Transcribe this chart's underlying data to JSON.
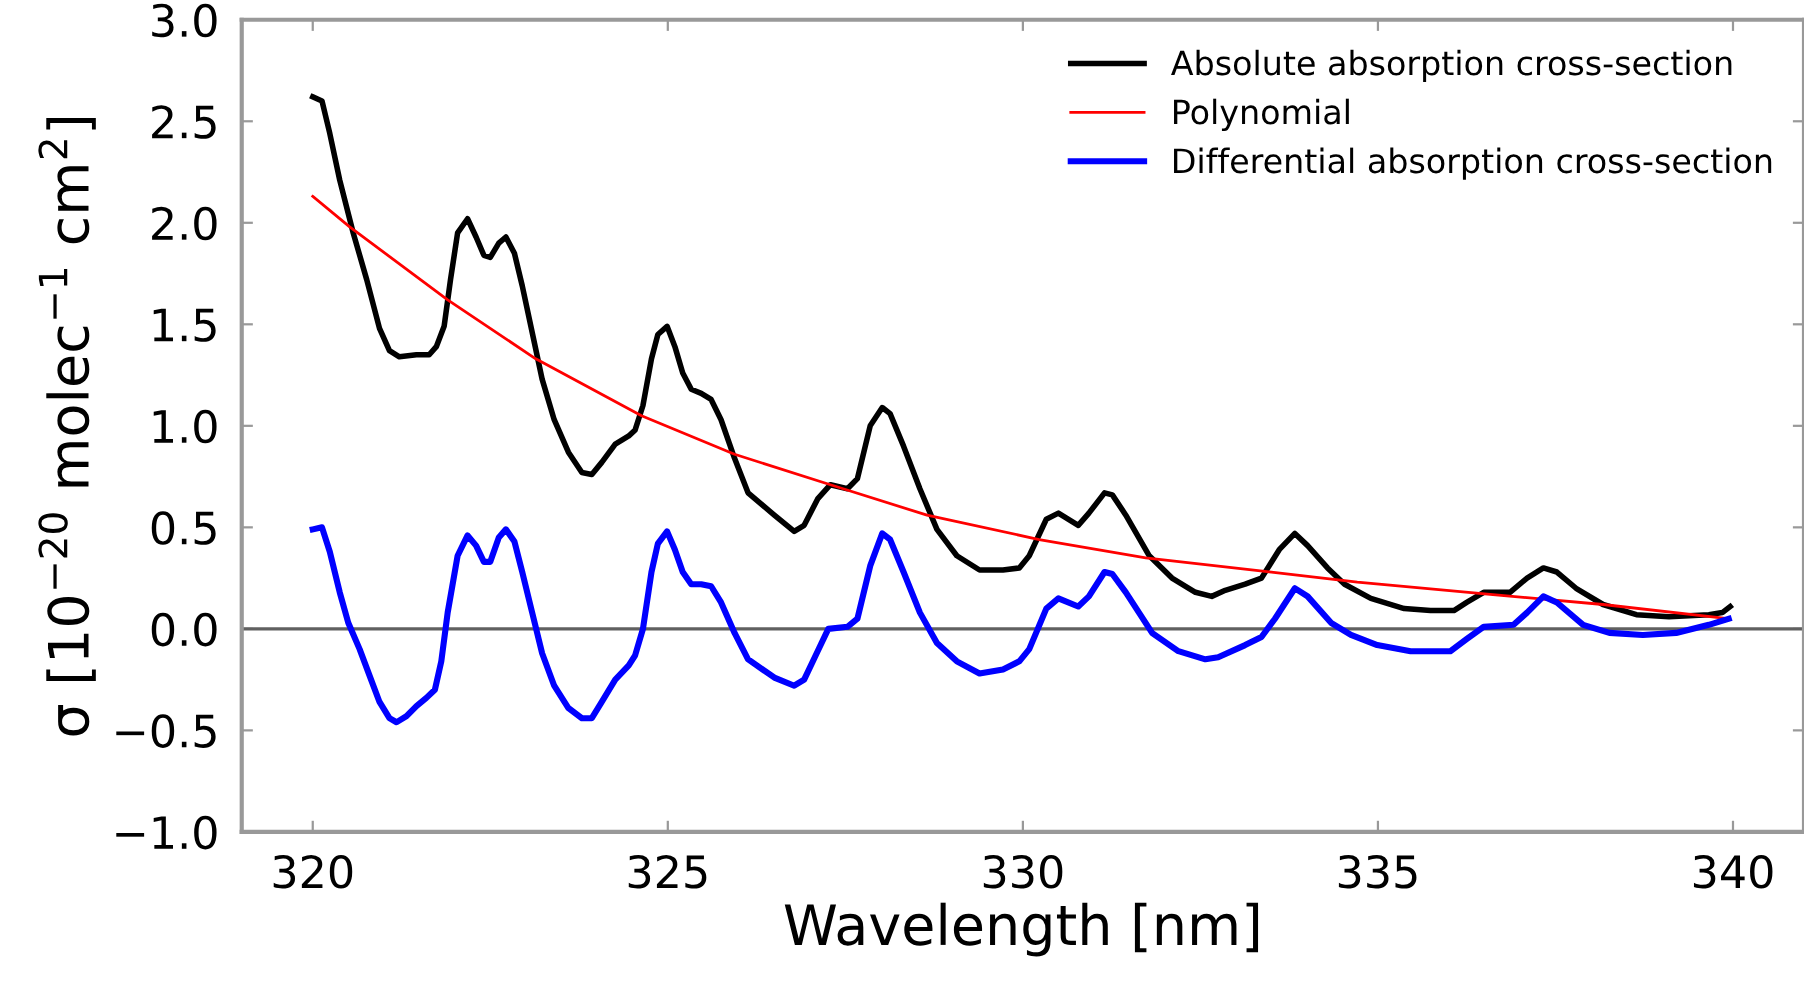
{
  "chart_data": {
    "type": "line",
    "xlabel": "Wavelength [nm]",
    "ylabel": "σ [10$^{−20}$ molec$^{−1}$ cm$^{2}$]",
    "xlim": [
      319,
      341
    ],
    "ylim": [
      -1.0,
      3.0
    ],
    "xticks": [
      320,
      325,
      330,
      335,
      340
    ],
    "yticks": [
      {
        "value": -1.0,
        "label": "−1.0"
      },
      {
        "value": -0.5,
        "label": "−0.5"
      },
      {
        "value": 0.0,
        "label": "0.0"
      },
      {
        "value": 0.5,
        "label": "0.5"
      },
      {
        "value": 1.0,
        "label": "1.0"
      },
      {
        "value": 1.5,
        "label": "1.5"
      },
      {
        "value": 2.0,
        "label": "2.0"
      },
      {
        "value": 2.5,
        "label": "2.5"
      },
      {
        "value": 3.0,
        "label": "3.0"
      }
    ],
    "grid": false,
    "legend": "top right",
    "line_style": "solid",
    "marker": "none",
    "ref_lines": [
      {
        "axis": "y",
        "value": 0,
        "color": "#606060"
      }
    ],
    "series": [
      {
        "name": "Absolute absorption cross-section",
        "color": "#000000",
        "x": [
          320.0,
          320.13,
          320.24,
          320.38,
          320.57,
          320.76,
          320.94,
          321.08,
          321.22,
          321.46,
          321.64,
          321.74,
          321.85,
          321.94,
          322.04,
          322.18,
          322.3,
          322.41,
          322.5,
          322.62,
          322.72,
          322.84,
          322.95,
          323.09,
          323.23,
          323.4,
          323.6,
          323.79,
          323.93,
          324.07,
          324.26,
          324.45,
          324.54,
          324.65,
          324.77,
          324.86,
          324.99,
          325.1,
          325.21,
          325.33,
          325.47,
          325.61,
          325.75,
          325.94,
          326.13,
          326.5,
          326.78,
          326.92,
          327.11,
          327.29,
          327.53,
          327.67,
          327.85,
          328.02,
          328.13,
          328.32,
          328.55,
          328.79,
          329.07,
          329.39,
          329.72,
          329.95,
          330.09,
          330.33,
          330.5,
          330.78,
          330.93,
          331.15,
          331.26,
          331.45,
          331.78,
          332.1,
          332.43,
          332.66,
          332.85,
          333.13,
          333.36,
          333.61,
          333.83,
          334.01,
          334.29,
          334.53,
          334.9,
          335.37,
          335.74,
          336.07,
          336.25,
          336.49,
          336.86,
          337.1,
          337.33,
          337.52,
          337.79,
          338.17,
          338.64,
          339.1,
          339.66,
          339.85,
          339.96
        ],
        "values": [
          2.62,
          2.6,
          2.44,
          2.21,
          1.95,
          1.72,
          1.48,
          1.37,
          1.34,
          1.35,
          1.35,
          1.39,
          1.49,
          1.72,
          1.95,
          2.02,
          1.93,
          1.84,
          1.83,
          1.9,
          1.93,
          1.85,
          1.69,
          1.46,
          1.23,
          1.03,
          0.87,
          0.77,
          0.76,
          0.82,
          0.91,
          0.95,
          0.98,
          1.1,
          1.33,
          1.45,
          1.49,
          1.39,
          1.26,
          1.18,
          1.16,
          1.13,
          1.03,
          0.84,
          0.67,
          0.56,
          0.48,
          0.51,
          0.64,
          0.71,
          0.69,
          0.74,
          1.0,
          1.09,
          1.06,
          0.9,
          0.69,
          0.49,
          0.36,
          0.29,
          0.29,
          0.3,
          0.36,
          0.54,
          0.57,
          0.51,
          0.57,
          0.67,
          0.66,
          0.56,
          0.36,
          0.25,
          0.18,
          0.16,
          0.19,
          0.22,
          0.25,
          0.39,
          0.47,
          0.41,
          0.3,
          0.22,
          0.15,
          0.1,
          0.09,
          0.09,
          0.13,
          0.18,
          0.18,
          0.25,
          0.3,
          0.28,
          0.2,
          0.12,
          0.07,
          0.06,
          0.07,
          0.08,
          0.11
        ]
      },
      {
        "name": "Polynomial",
        "color": "#ff0000",
        "x": [
          320.0,
          320.52,
          321.9,
          323.14,
          324.63,
          325.94,
          327.29,
          328.65,
          330.23,
          331.73,
          333.5,
          334.71,
          336.58,
          338.17,
          339.94
        ],
        "values": [
          2.13,
          1.98,
          1.62,
          1.33,
          1.05,
          0.86,
          0.71,
          0.56,
          0.44,
          0.35,
          0.28,
          0.23,
          0.17,
          0.12,
          0.05
        ]
      },
      {
        "name": "Differential absorption cross-section",
        "color": "#0000ff",
        "x": [
          320.0,
          320.13,
          320.24,
          320.38,
          320.5,
          320.66,
          320.8,
          320.94,
          321.08,
          321.18,
          321.32,
          321.46,
          321.6,
          321.72,
          321.81,
          321.9,
          322.04,
          322.18,
          322.3,
          322.41,
          322.5,
          322.62,
          322.72,
          322.84,
          322.95,
          323.09,
          323.23,
          323.4,
          323.6,
          323.79,
          323.93,
          324.07,
          324.26,
          324.45,
          324.54,
          324.65,
          324.77,
          324.86,
          324.99,
          325.1,
          325.21,
          325.33,
          325.47,
          325.61,
          325.75,
          325.94,
          326.13,
          326.5,
          326.78,
          326.92,
          327.11,
          327.26,
          327.53,
          327.67,
          327.85,
          328.02,
          328.13,
          328.32,
          328.55,
          328.79,
          329.07,
          329.39,
          329.72,
          329.95,
          330.09,
          330.33,
          330.5,
          330.78,
          330.93,
          331.15,
          331.26,
          331.45,
          331.82,
          332.19,
          332.57,
          332.75,
          333.13,
          333.36,
          333.55,
          333.83,
          334.01,
          334.34,
          334.62,
          334.99,
          335.46,
          336.02,
          336.25,
          336.49,
          336.91,
          337.1,
          337.33,
          337.52,
          337.89,
          338.26,
          338.73,
          339.2,
          339.66,
          339.94
        ],
        "values": [
          0.49,
          0.5,
          0.38,
          0.18,
          0.03,
          -0.1,
          -0.23,
          -0.36,
          -0.44,
          -0.46,
          -0.43,
          -0.38,
          -0.34,
          -0.3,
          -0.16,
          0.08,
          0.36,
          0.46,
          0.41,
          0.33,
          0.33,
          0.45,
          0.49,
          0.43,
          0.28,
          0.08,
          -0.12,
          -0.28,
          -0.39,
          -0.44,
          -0.44,
          -0.36,
          -0.25,
          -0.18,
          -0.13,
          0.0,
          0.28,
          0.42,
          0.48,
          0.39,
          0.28,
          0.22,
          0.22,
          0.21,
          0.13,
          -0.02,
          -0.15,
          -0.24,
          -0.28,
          -0.25,
          -0.11,
          0.0,
          0.01,
          0.05,
          0.31,
          0.47,
          0.44,
          0.28,
          0.08,
          -0.07,
          -0.16,
          -0.22,
          -0.2,
          -0.16,
          -0.1,
          0.1,
          0.15,
          0.11,
          0.16,
          0.28,
          0.27,
          0.18,
          -0.02,
          -0.11,
          -0.15,
          -0.14,
          -0.08,
          -0.04,
          0.05,
          0.2,
          0.16,
          0.03,
          -0.03,
          -0.08,
          -0.11,
          -0.11,
          -0.05,
          0.01,
          0.02,
          0.08,
          0.16,
          0.13,
          0.02,
          -0.02,
          -0.03,
          -0.02,
          0.02,
          0.05
        ]
      }
    ]
  }
}
